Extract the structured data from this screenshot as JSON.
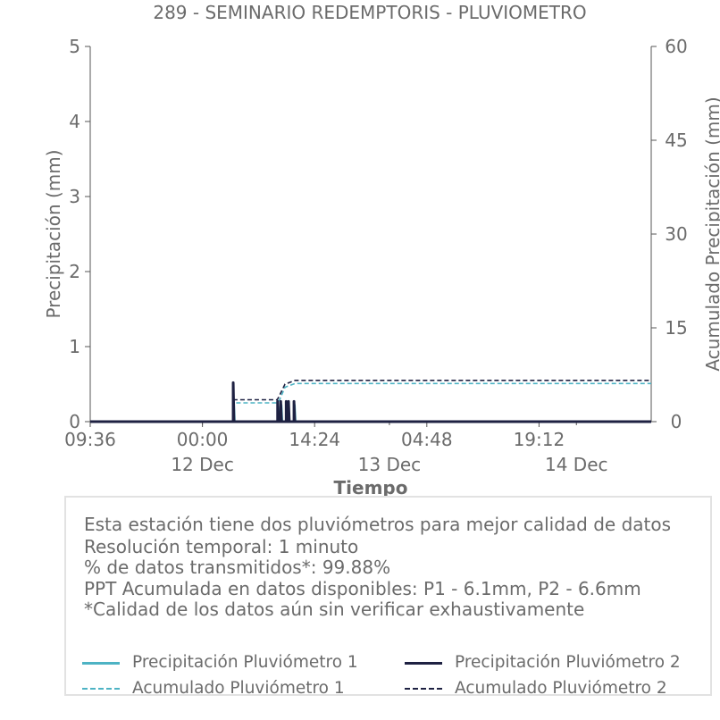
{
  "chart_data": {
    "type": "line",
    "title": "289 - SEMINARIO REDEMPTORIS - PLUVIOMETRO",
    "xlabel": "Tiempo",
    "ylabel_left": "Precipitación (mm)",
    "ylabel_right": "Acumulado Precipitación (mm)",
    "ylim_left": [
      0,
      5
    ],
    "ylim_right": [
      0,
      60
    ],
    "yticks_left": [
      "0",
      "1",
      "2",
      "3",
      "4",
      "5"
    ],
    "yticks_right": [
      "0",
      "15",
      "30",
      "45",
      "60"
    ],
    "x_ticks": [
      {
        "hours": 0,
        "label": "09:36"
      },
      {
        "hours": 14.4,
        "label": "00:00"
      },
      {
        "hours": 28.8,
        "label": "14:24"
      },
      {
        "hours": 43.2,
        "label": "04:48"
      },
      {
        "hours": 57.6,
        "label": "19:12"
      }
    ],
    "x_date_labels": [
      {
        "hours": 14.4,
        "label": "12 Dec"
      },
      {
        "hours": 38.4,
        "label": "13 Dec"
      },
      {
        "hours": 62.4,
        "label": "14 Dec"
      }
    ],
    "xlim_hours": [
      0,
      72
    ],
    "series": [
      {
        "name": "Precipitación Pluviómetro 1",
        "axis": "left",
        "color": "#4db3c4",
        "style": "solid",
        "points": [
          [
            0,
            0
          ],
          [
            18.4,
            0
          ],
          [
            18.4,
            0.25
          ],
          [
            18.5,
            0
          ],
          [
            24.1,
            0
          ],
          [
            24.1,
            0.2
          ],
          [
            24.2,
            0
          ],
          [
            24.5,
            0
          ],
          [
            24.5,
            0.22
          ],
          [
            24.6,
            0
          ],
          [
            25.2,
            0
          ],
          [
            25.2,
            0.2
          ],
          [
            25.3,
            0
          ],
          [
            26.2,
            0
          ],
          [
            26.2,
            0.22
          ],
          [
            26.3,
            0
          ],
          [
            72,
            0
          ]
        ]
      },
      {
        "name": "Precipitación Pluviómetro 2",
        "axis": "left",
        "color": "#1e2142",
        "style": "solid",
        "points": [
          [
            0,
            0
          ],
          [
            18.35,
            0
          ],
          [
            18.35,
            0.52
          ],
          [
            18.45,
            0
          ],
          [
            24.05,
            0
          ],
          [
            24.05,
            0.27
          ],
          [
            24.15,
            0
          ],
          [
            24.45,
            0
          ],
          [
            24.45,
            0.27
          ],
          [
            24.55,
            0
          ],
          [
            25.15,
            0
          ],
          [
            25.15,
            0.27
          ],
          [
            25.25,
            0
          ],
          [
            25.45,
            0
          ],
          [
            25.45,
            0.27
          ],
          [
            25.55,
            0
          ],
          [
            26.15,
            0
          ],
          [
            26.15,
            0.27
          ],
          [
            26.25,
            0
          ],
          [
            72,
            0
          ]
        ]
      },
      {
        "name": "Acumulado Pluviómetro 1",
        "axis": "right",
        "color": "#4db3c4",
        "style": "dashed",
        "points": [
          [
            0,
            0
          ],
          [
            18.4,
            0
          ],
          [
            18.45,
            3.0
          ],
          [
            24.0,
            3.0
          ],
          [
            24.3,
            3.5
          ],
          [
            25.0,
            5.5
          ],
          [
            26.3,
            6.1
          ],
          [
            72,
            6.1
          ]
        ]
      },
      {
        "name": "Acumulado Pluviómetro 2",
        "axis": "right",
        "color": "#1e2142",
        "style": "dashed",
        "points": [
          [
            0,
            0
          ],
          [
            18.35,
            0
          ],
          [
            18.4,
            3.5
          ],
          [
            24.0,
            3.5
          ],
          [
            24.3,
            4.2
          ],
          [
            25.0,
            6.0
          ],
          [
            26.3,
            6.6
          ],
          [
            72,
            6.6
          ]
        ]
      }
    ]
  },
  "info": {
    "lines": [
      "Esta estación tiene dos pluviómetros para mejor calidad de datos",
      "Resolución temporal: 1 minuto",
      "% de datos transmitidos*: 99.88%",
      "PPT Acumulada en datos disponibles: P1 - 6.1mm, P2 - 6.6mm",
      "*Calidad de los datos aún sin verificar exhaustivamente"
    ]
  },
  "legend": {
    "items": [
      {
        "label": "Precipitación Pluviómetro 1",
        "color": "#4db3c4",
        "style": "solid"
      },
      {
        "label": "Precipitación Pluviómetro 2",
        "color": "#1e2142",
        "style": "solid"
      },
      {
        "label": "Acumulado Pluviómetro 1",
        "color": "#4db3c4",
        "style": "dashed"
      },
      {
        "label": "Acumulado Pluviómetro 2",
        "color": "#1e2142",
        "style": "dashed"
      }
    ]
  }
}
